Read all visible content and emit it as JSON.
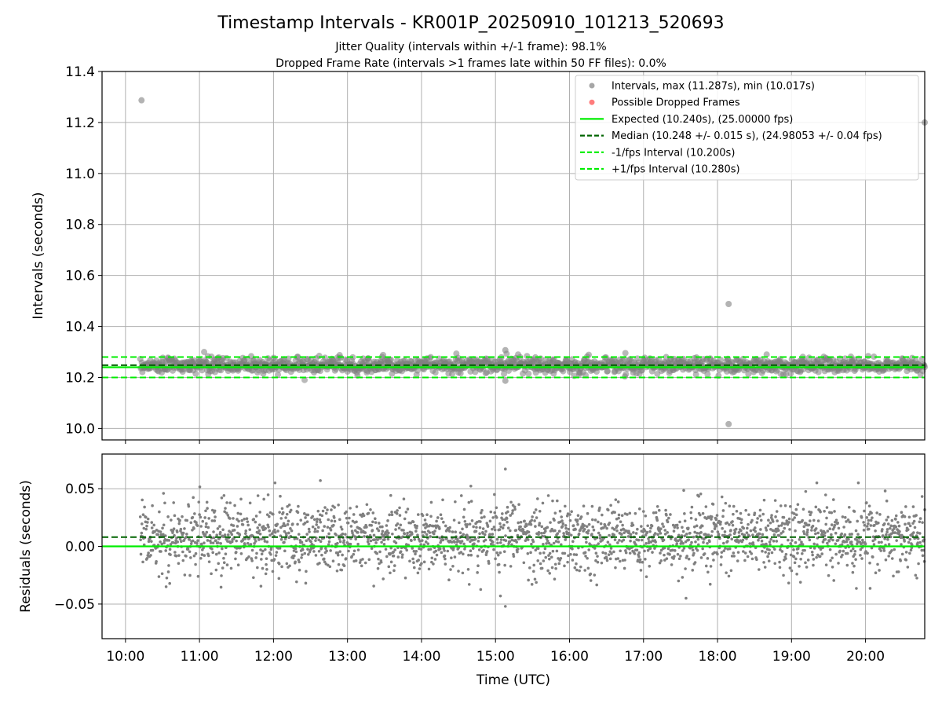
{
  "chart_data": [
    {
      "type": "scatter",
      "title": "Timestamp Intervals - KR001P_20250910_101213_520693",
      "subtitle_lines": [
        "Jitter Quality (intervals within +/-1 frame): 98.1%",
        "Dropped Frame Rate (intervals >1 frames late within 50 FF files): 0.0%"
      ],
      "xlabel": "",
      "ylabel": "Intervals (seconds)",
      "ylim": [
        9.955,
        11.4
      ],
      "yticks": [
        "10.0",
        "10.2",
        "10.4",
        "10.6",
        "10.8",
        "11.0",
        "11.2",
        "11.4"
      ],
      "ytick_values": [
        10.0,
        10.2,
        10.4,
        10.6,
        10.8,
        11.0,
        11.2,
        11.4
      ],
      "grid": true,
      "legend_position": "top-right",
      "legend": [
        "Intervals, max (11.287s), min (10.017s)",
        "Possible Dropped Frames",
        "Expected (10.240s), (25.00000 fps)",
        "Median (10.248 +/- 0.015 s), (24.98053 +/- 0.04 fps)",
        "-1/fps Interval (10.200s)",
        "+1/fps Interval (10.280s)"
      ],
      "reference_lines": {
        "expected": 10.24,
        "median": 10.248,
        "minus_one_fps": 10.2,
        "plus_one_fps": 10.28
      },
      "series": [
        {
          "name": "Intervals, max (11.287s), min (10.017s)",
          "summary": {
            "start": "10:12",
            "end": "20:48",
            "step_seconds": 10.24,
            "median": 10.248,
            "std": 0.015
          },
          "outliers": [
            {
              "x": "10:13",
              "y": 11.287
            },
            {
              "x": "18:09",
              "y": 10.488
            },
            {
              "x": "18:09",
              "y": 10.017
            },
            {
              "x": "20:48",
              "y": 11.2
            },
            {
              "x": "15:08",
              "y": 10.307
            },
            {
              "x": "15:08",
              "y": 10.187
            }
          ]
        },
        {
          "name": "Possible Dropped Frames",
          "values": []
        }
      ],
      "colors": {
        "intervals": "#808080",
        "dropped": "#ff4444",
        "expected": "#00ee00",
        "median": "#006400",
        "fps_bounds": "#00ee00"
      }
    },
    {
      "type": "scatter",
      "xlabel": "Time (UTC)",
      "ylabel": "Residuals (seconds)",
      "ylim": [
        -0.08,
        0.08
      ],
      "yticks": [
        "−0.05",
        "0.00",
        "0.05"
      ],
      "ytick_values": [
        -0.05,
        0.0,
        0.05
      ],
      "xlim": [
        "09:41",
        "20:48"
      ],
      "xticks": [
        "10:00",
        "11:00",
        "12:00",
        "13:00",
        "14:00",
        "15:00",
        "16:00",
        "17:00",
        "18:00",
        "19:00",
        "20:00"
      ],
      "grid": true,
      "reference_lines": {
        "zero": 0.0,
        "median_residual": 0.008
      },
      "series": [
        {
          "name": "",
          "summary": {
            "start": "10:12",
            "end": "20:48",
            "mean": 0.008,
            "std": 0.015
          },
          "extremes": [
            {
              "x": "15:08",
              "y": 0.067
            },
            {
              "x": "15:08",
              "y": -0.052
            },
            {
              "x": "12:38",
              "y": 0.057
            },
            {
              "x": "15:04",
              "y": -0.043
            }
          ]
        }
      ]
    }
  ]
}
